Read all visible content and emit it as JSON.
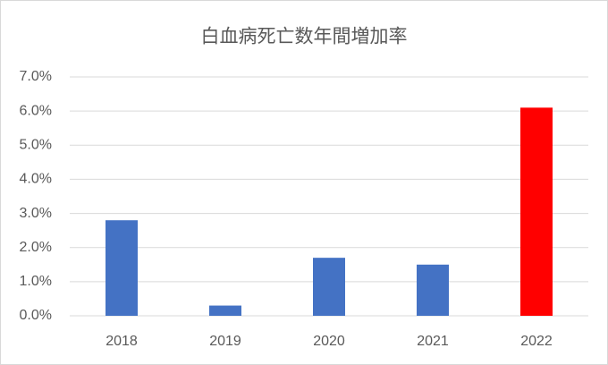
{
  "chart_data": {
    "type": "bar",
    "title": "白血病死亡数年間増加率",
    "categories": [
      "2018",
      "2019",
      "2020",
      "2021",
      "2022"
    ],
    "values": [
      2.8,
      0.3,
      1.7,
      1.5,
      6.1
    ],
    "colors": [
      "#4472c4",
      "#4472c4",
      "#4472c4",
      "#4472c4",
      "#ff0000"
    ],
    "ylim": [
      0,
      7
    ],
    "yticks": [
      {
        "value": 0,
        "label": "0.0%"
      },
      {
        "value": 1,
        "label": "1.0%"
      },
      {
        "value": 2,
        "label": "2.0%"
      },
      {
        "value": 3,
        "label": "3.0%"
      },
      {
        "value": 4,
        "label": "4.0%"
      },
      {
        "value": 5,
        "label": "5.0%"
      },
      {
        "value": 6,
        "label": "6.0%"
      },
      {
        "value": 7,
        "label": "7.0%"
      }
    ],
    "grid": true
  }
}
